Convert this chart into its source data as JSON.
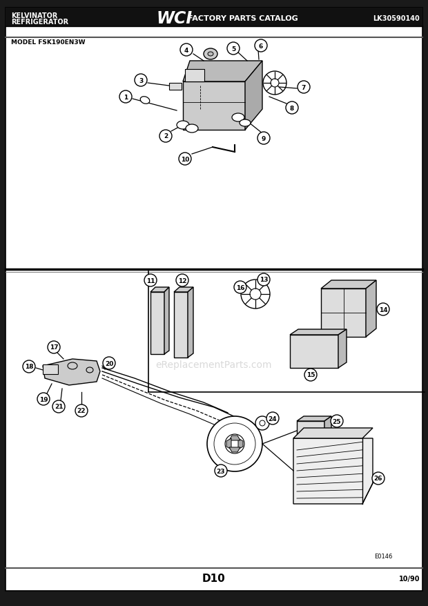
{
  "bg_color": "#ffffff",
  "header": {
    "left_text_line1": "KELVINATOR",
    "left_text_line2": "REFRIGERATOR",
    "center_logo": "WCI",
    "center_text": "FACTORY PARTS CATALOG",
    "right_text": "LK30590140"
  },
  "model_text": "MODEL FSK190EN3W",
  "footer_center": "D10",
  "footer_right": "10/90",
  "e_label": "E0146",
  "watermark": "eReplacementParts.com"
}
